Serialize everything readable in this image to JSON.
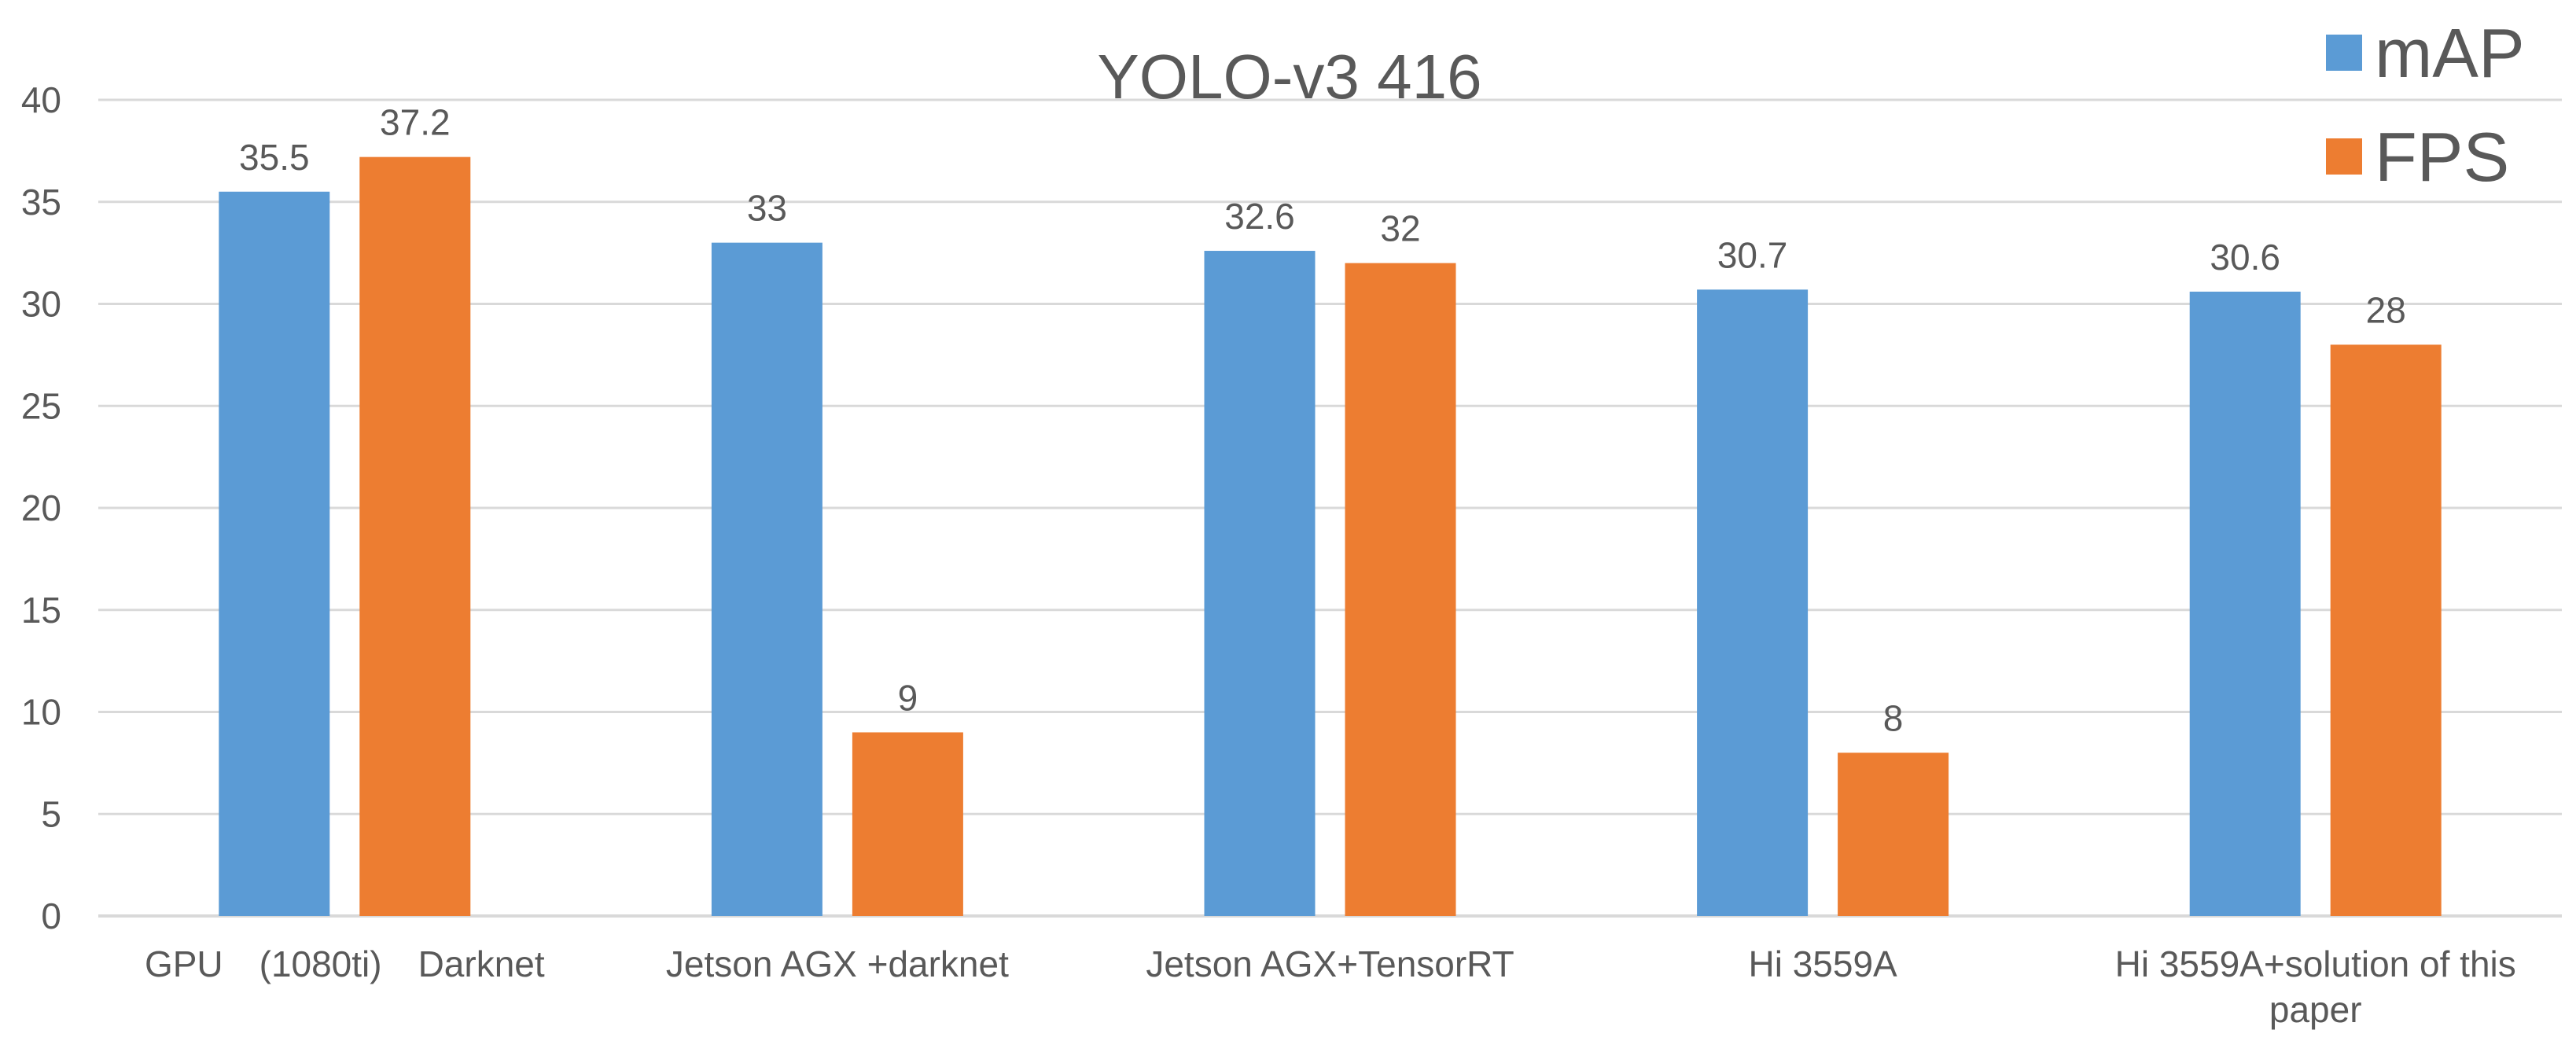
{
  "chart_data": {
    "type": "bar",
    "title": "YOLO-v3 416",
    "xlabel": "",
    "ylabel": "",
    "ylim": [
      0,
      40
    ],
    "yticks": [
      0,
      5,
      10,
      15,
      20,
      25,
      30,
      35,
      40
    ],
    "grid": true,
    "legend_position": "top-right",
    "categories": [
      [
        "GPU　(1080ti)　Darknet"
      ],
      [
        "Jetson AGX +darknet"
      ],
      [
        "Jetson AGX+TensorRT"
      ],
      [
        "Hi 3559A"
      ],
      [
        "Hi 3559A+solution of this",
        "paper"
      ]
    ],
    "series": [
      {
        "name": "mAP",
        "color": "#5B9BD5",
        "values": [
          35.5,
          33,
          32.6,
          30.7,
          30.6
        ]
      },
      {
        "name": "FPS",
        "color": "#ED7D31",
        "values": [
          37.2,
          9,
          32,
          8,
          28
        ]
      }
    ]
  }
}
